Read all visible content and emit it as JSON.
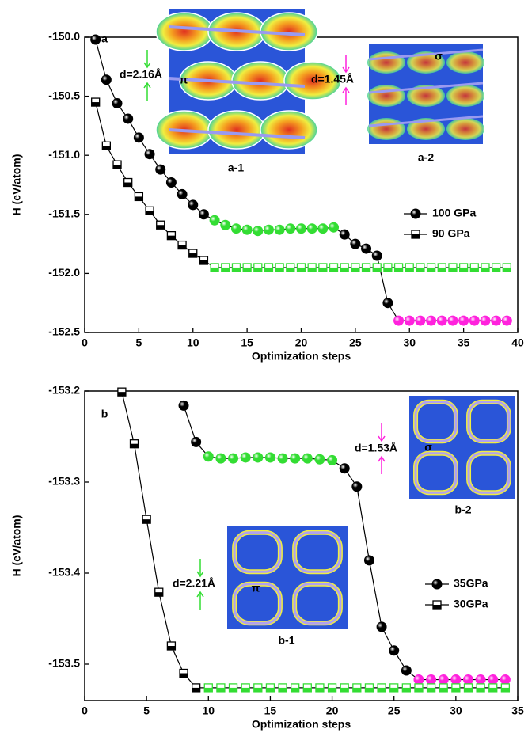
{
  "chart_data": [
    {
      "type": "line",
      "x_label": "Optimization steps",
      "y_label": "H (eV/atom)",
      "xlim": [
        0,
        40
      ],
      "ylim": [
        -152.5,
        -150.0
      ],
      "xticks": [
        0,
        5,
        10,
        15,
        20,
        25,
        30,
        35,
        40
      ],
      "yticks": [
        {
          "value": -150.0,
          "label": "-150.0"
        },
        -150.5,
        {
          "value": -151.0,
          "label": "-151.0"
        },
        -151.5,
        {
          "value": -152.0,
          "label": "-152.0"
        },
        -152.5
      ],
      "legend": "right",
      "annotations": [
        {
          "text": "a",
          "color": "#000000"
        }
      ],
      "insets": [
        {
          "label": "a-1",
          "symbol": "π",
          "distance": "d=2.16Å",
          "color": "#33dd33"
        },
        {
          "label": "a-2",
          "symbol": "σ",
          "distance": "d=1.45Å",
          "color": "#ff22dd"
        }
      ],
      "series": [
        {
          "name": "100 GPa",
          "color": "#000000",
          "marker": "ball",
          "x": [
            1,
            2,
            3,
            4,
            5,
            6,
            7,
            8,
            9,
            10,
            11,
            12,
            13,
            14,
            15,
            16,
            17,
            18,
            19,
            20,
            21,
            22,
            23,
            24,
            25,
            26,
            27,
            28,
            29,
            30,
            31,
            32,
            33,
            34,
            35,
            36,
            37,
            38,
            39
          ],
          "values": [
            -150.02,
            -150.36,
            -150.56,
            -150.69,
            -150.85,
            -150.99,
            -151.12,
            -151.23,
            -151.33,
            -151.42,
            -151.5,
            -151.55,
            -151.59,
            -151.62,
            -151.63,
            -151.64,
            -151.63,
            -151.63,
            -151.62,
            -151.62,
            -151.62,
            -151.62,
            -151.61,
            -151.67,
            -151.75,
            -151.79,
            -151.85,
            -152.25,
            -152.4,
            -152.4,
            -152.4,
            -152.4,
            -152.4,
            -152.4,
            -152.4,
            -152.4,
            -152.4,
            -152.4,
            -152.4
          ],
          "marker_colors": [
            "#000000",
            "#000000",
            "#000000",
            "#000000",
            "#000000",
            "#000000",
            "#000000",
            "#000000",
            "#000000",
            "#000000",
            "#000000",
            "#33dd33",
            "#33dd33",
            "#33dd33",
            "#33dd33",
            "#33dd33",
            "#33dd33",
            "#33dd33",
            "#33dd33",
            "#33dd33",
            "#33dd33",
            "#33dd33",
            "#33dd33",
            "#000000",
            "#000000",
            "#000000",
            "#000000",
            "#000000",
            "#ff22dd",
            "#ff22dd",
            "#ff22dd",
            "#ff22dd",
            "#ff22dd",
            "#ff22dd",
            "#ff22dd",
            "#ff22dd",
            "#ff22dd",
            "#ff22dd",
            "#ff22dd"
          ]
        },
        {
          "name": "90 GPa",
          "color": "#000000",
          "marker": "half-square",
          "x": [
            1,
            2,
            3,
            4,
            5,
            6,
            7,
            8,
            9,
            10,
            11,
            12,
            13,
            14,
            15,
            16,
            17,
            18,
            19,
            20,
            21,
            22,
            23,
            24,
            25,
            26,
            27,
            28,
            29,
            30,
            31,
            32,
            33,
            34,
            35,
            36,
            37,
            38,
            39
          ],
          "values": [
            -150.55,
            -150.92,
            -151.08,
            -151.23,
            -151.35,
            -151.47,
            -151.59,
            -151.68,
            -151.76,
            -151.83,
            -151.89,
            -151.95,
            -151.95,
            -151.95,
            -151.95,
            -151.95,
            -151.95,
            -151.95,
            -151.95,
            -151.95,
            -151.95,
            -151.95,
            -151.95,
            -151.95,
            -151.95,
            -151.95,
            -151.95,
            -151.95,
            -151.95,
            -151.95,
            -151.95,
            -151.95,
            -151.95,
            -151.95,
            -151.95,
            -151.95,
            -151.95,
            -151.95,
            -151.95
          ],
          "marker_colors": [
            "#000000",
            "#000000",
            "#000000",
            "#000000",
            "#000000",
            "#000000",
            "#000000",
            "#000000",
            "#000000",
            "#000000",
            "#000000",
            "#33dd33",
            "#33dd33",
            "#33dd33",
            "#33dd33",
            "#33dd33",
            "#33dd33",
            "#33dd33",
            "#33dd33",
            "#33dd33",
            "#33dd33",
            "#33dd33",
            "#33dd33",
            "#33dd33",
            "#33dd33",
            "#33dd33",
            "#33dd33",
            "#33dd33",
            "#33dd33",
            "#33dd33",
            "#33dd33",
            "#33dd33",
            "#33dd33",
            "#33dd33",
            "#33dd33",
            "#33dd33",
            "#33dd33",
            "#33dd33",
            "#33dd33"
          ]
        }
      ]
    },
    {
      "type": "line",
      "x_label": "Optimization steps",
      "y_label": "H (eV/atom)",
      "xlim": [
        0,
        35
      ],
      "ylim": [
        -153.54,
        -153.2
      ],
      "xticks": [
        0,
        5,
        10,
        15,
        20,
        25,
        30,
        35
      ],
      "yticks": [
        -153.2,
        -153.3,
        -153.4,
        -153.5
      ],
      "legend": "lower right",
      "annotations": [
        {
          "text": "b",
          "color": "#000000"
        }
      ],
      "insets": [
        {
          "label": "b-1",
          "symbol": "π",
          "distance": "d=2.21Å",
          "color": "#33dd33"
        },
        {
          "label": "b-2",
          "symbol": "σ",
          "distance": "d=1.53Å",
          "color": "#ff22dd"
        }
      ],
      "series": [
        {
          "name": "35GPa",
          "color": "#000000",
          "marker": "ball",
          "x": [
            8,
            9,
            10,
            11,
            12,
            13,
            14,
            15,
            16,
            17,
            18,
            19,
            20,
            21,
            22,
            23,
            24,
            25,
            26,
            27,
            28,
            29,
            30,
            31,
            32,
            33,
            34
          ],
          "values": [
            -153.216,
            -153.256,
            -153.272,
            -153.274,
            -153.274,
            -153.273,
            -153.273,
            -153.273,
            -153.274,
            -153.274,
            -153.274,
            -153.275,
            -153.276,
            -153.285,
            -153.305,
            -153.386,
            -153.459,
            -153.485,
            -153.507,
            -153.517,
            -153.517,
            -153.517,
            -153.517,
            -153.517,
            -153.517,
            -153.517,
            -153.517
          ],
          "marker_colors": [
            "#000000",
            "#000000",
            "#33dd33",
            "#33dd33",
            "#33dd33",
            "#33dd33",
            "#33dd33",
            "#33dd33",
            "#33dd33",
            "#33dd33",
            "#33dd33",
            "#33dd33",
            "#33dd33",
            "#000000",
            "#000000",
            "#000000",
            "#000000",
            "#000000",
            "#000000",
            "#ff22dd",
            "#ff22dd",
            "#ff22dd",
            "#ff22dd",
            "#ff22dd",
            "#ff22dd",
            "#ff22dd",
            "#ff22dd"
          ]
        },
        {
          "name": "30GPa",
          "color": "#000000",
          "marker": "half-square",
          "x": [
            3,
            4,
            5,
            6,
            7,
            8,
            9,
            10,
            11,
            12,
            13,
            14,
            15,
            16,
            17,
            18,
            19,
            20,
            21,
            22,
            23,
            24,
            25,
            26,
            27,
            28,
            29,
            30,
            31,
            32,
            33,
            34
          ],
          "values": [
            -153.201,
            -153.258,
            -153.341,
            -153.421,
            -153.48,
            -153.51,
            -153.526,
            -153.526,
            -153.526,
            -153.526,
            -153.526,
            -153.526,
            -153.526,
            -153.526,
            -153.526,
            -153.526,
            -153.526,
            -153.526,
            -153.526,
            -153.526,
            -153.526,
            -153.526,
            -153.526,
            -153.526,
            -153.526,
            -153.526,
            -153.526,
            -153.526,
            -153.526,
            -153.526,
            -153.526,
            -153.526
          ],
          "marker_colors": [
            "#000000",
            "#000000",
            "#000000",
            "#000000",
            "#000000",
            "#000000",
            "#000000",
            "#33dd33",
            "#33dd33",
            "#33dd33",
            "#33dd33",
            "#33dd33",
            "#33dd33",
            "#33dd33",
            "#33dd33",
            "#33dd33",
            "#33dd33",
            "#33dd33",
            "#33dd33",
            "#33dd33",
            "#33dd33",
            "#33dd33",
            "#33dd33",
            "#33dd33",
            "#33dd33",
            "#33dd33",
            "#33dd33",
            "#33dd33",
            "#33dd33",
            "#33dd33",
            "#33dd33",
            "#33dd33"
          ]
        }
      ]
    }
  ]
}
